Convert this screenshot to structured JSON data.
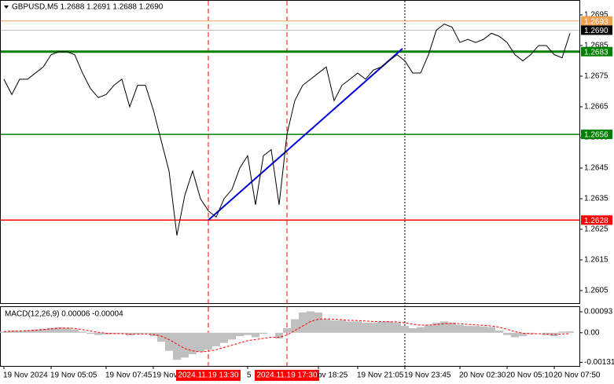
{
  "chart_data": [
    {
      "type": "line",
      "title": "GBPUSD,M5  1.2688 1.2691 1.2688 1.2690",
      "categories": [
        "19 Nov 2024",
        null,
        null,
        null,
        null,
        null,
        "19 Nov 05:05",
        null,
        null,
        null,
        null,
        null,
        null,
        "19 Nov 07:45",
        null,
        null,
        null,
        null,
        null,
        "19 Nov",
        null,
        null,
        null,
        null,
        null,
        null,
        "2024.11.19 13:30",
        null,
        null,
        null,
        null,
        "5",
        null,
        null,
        null,
        null,
        "2024.11.19 17:30",
        null,
        null,
        null,
        "ov 18:25",
        null,
        null,
        null,
        null,
        "19 Nov 21:05",
        null,
        null,
        null,
        null,
        null,
        "19 Nov 23:45",
        null,
        null,
        null,
        null,
        null,
        null,
        "20 Nov 02:30",
        null,
        null,
        null,
        null,
        null,
        "20 Nov 05:10",
        null,
        null,
        null,
        null,
        null,
        "20 Nov 07:50",
        null,
        null
      ],
      "values": [
        1.2674,
        1.2669,
        1.2674,
        1.2674,
        1.2676,
        1.2678,
        1.2682,
        1.2683,
        1.2683,
        1.2682,
        1.2676,
        1.2671,
        1.2668,
        1.2669,
        1.2672,
        1.2674,
        1.2665,
        1.2672,
        1.2672,
        1.2664,
        1.2654,
        1.2644,
        1.2623,
        1.2636,
        1.2644,
        1.2635,
        1.2631,
        1.2629,
        1.2635,
        1.2638,
        1.2645,
        1.2649,
        1.2633,
        1.2649,
        1.2651,
        1.2633,
        1.2656,
        1.2667,
        1.2672,
        1.2674,
        1.2676,
        1.2678,
        1.2667,
        1.2672,
        1.2674,
        1.2676,
        1.2674,
        1.2677,
        1.2678,
        1.268,
        1.2682,
        1.268,
        1.2676,
        1.2676,
        1.2682,
        1.269,
        1.2692,
        1.2691,
        1.2686,
        1.2687,
        1.2686,
        1.2687,
        1.2689,
        1.2688,
        1.2686,
        1.2682,
        1.268,
        1.2682,
        1.2685,
        1.2685,
        1.2682,
        1.2681,
        1.2689
      ],
      "color": "#000000",
      "ylim": [
        1.26009,
        1.26996
      ],
      "yticks": [
        1.2695,
        1.2685,
        1.2675,
        1.2665,
        1.2655,
        1.2645,
        1.2635,
        1.2625,
        1.2615,
        1.2605
      ],
      "highlighted": [
        26,
        36
      ],
      "highlight_color": "#ff0000",
      "levels": [
        {
          "value": 1.2693,
          "color": "#f0a050",
          "width": 1
        },
        {
          "value": 1.269,
          "label": "1.2690",
          "color": "#c0c0c0",
          "box": "#000000",
          "width": 1
        },
        {
          "value": 1.2683,
          "color": "#008000",
          "width": 3
        },
        {
          "value": 1.2656,
          "color": "#008000",
          "width": 1.5
        },
        {
          "value": 1.2628,
          "color": "#ff0000",
          "width": 1.5
        }
      ],
      "trend_line": {
        "color": "#0000dd",
        "values": [
          1.2628,
          1.2684
        ]
      }
    },
    {
      "type": "macd",
      "title": "MACD(12,26,9) 0.00006 -0.00004",
      "ylim": [
        -0.00147,
        0.00114
      ],
      "yticks": [
        0.00093,
        {
          "value": 0,
          "label": "0.00"
        },
        -0.00131
      ],
      "histogram": {
        "color": "#c0c0c0",
        "values": [
          5e-05,
          0.0001,
          8e-05,
          0.00012,
          0.00015,
          0.00018,
          0.00022,
          0.00025,
          0.00022,
          0.00015,
          5e-05,
          -5e-05,
          -0.0001,
          -8e-05,
          -5e-05,
          -3e-05,
          -0.00012,
          -5e-05,
          -3e-05,
          -0.00015,
          -0.0004,
          -0.0008,
          -0.0012,
          -0.0011,
          -0.00095,
          -0.00085,
          -0.00075,
          -0.0006,
          -0.00045,
          -0.0003,
          -0.00015,
          -0.0001,
          -0.0002,
          -5e-05,
          0,
          -0.00025,
          0.0002,
          0.0006,
          0.0009,
          0.00095,
          0.0009,
          0.0006,
          0.00055,
          0.00055,
          0.0005,
          0.0005,
          0.00045,
          0.00045,
          0.00048,
          0.0005,
          0.00045,
          0.0003,
          0.0002,
          0.00025,
          0.00035,
          0.00045,
          0.0005,
          0.00045,
          0.00035,
          0.0003,
          0.0003,
          0.00028,
          0.00025,
          0.0001,
          -0.0001,
          -0.0002,
          -0.00015,
          -5e-05,
          0,
          -0.0001,
          -0.00015,
          5e-05,
          6e-05
        ]
      },
      "signal": {
        "color": "#ff0000",
        "values": [
          5e-05,
          7e-05,
          8e-05,
          9e-05,
          0.00011,
          0.00014,
          0.00017,
          0.0002,
          0.00021,
          0.00019,
          0.00014,
          8e-05,
          2e-05,
          -2e-05,
          -4e-05,
          -4e-05,
          -6e-05,
          -6e-05,
          -5e-05,
          -7e-05,
          -0.00015,
          -0.0003,
          -0.0005,
          -0.0007,
          -0.0008,
          -0.00085,
          -0.00082,
          -0.00075,
          -0.00065,
          -0.00055,
          -0.00045,
          -0.00035,
          -0.0003,
          -0.00025,
          -0.0002,
          -0.0002,
          -0.0001,
          0.0001,
          0.0003,
          0.0005,
          0.0006,
          0.00062,
          0.0006,
          0.00058,
          0.00055,
          0.00054,
          0.00052,
          0.0005,
          0.00049,
          0.00049,
          0.00048,
          0.00044,
          0.00038,
          0.00034,
          0.00034,
          0.00036,
          0.0004,
          0.00042,
          0.0004,
          0.00037,
          0.00035,
          0.00033,
          0.0003,
          0.00025,
          0.00015,
          5e-05,
          -2e-05,
          -5e-05,
          -4e-05,
          -6e-05,
          -8e-05,
          -5e-05,
          -4e-05
        ]
      }
    }
  ]
}
